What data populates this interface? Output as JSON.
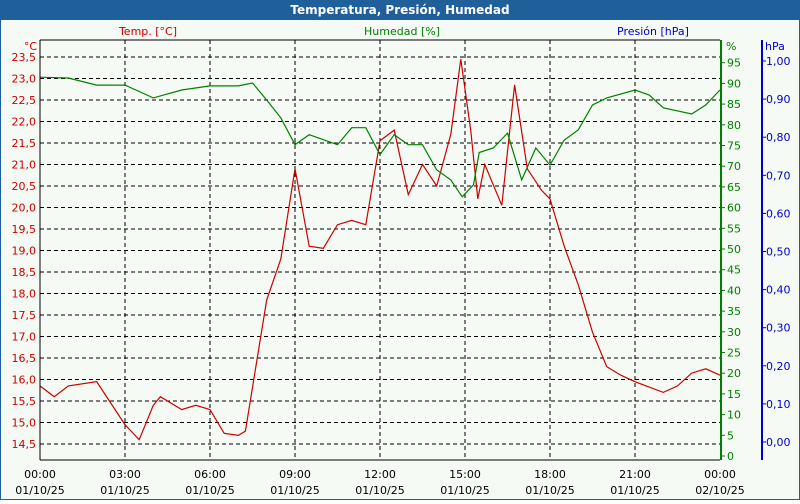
{
  "window": {
    "title": "Temperatura, Presión, Humedad",
    "titlebar_color": "#1f5f9a"
  },
  "chart_data": {
    "type": "line",
    "title": "Temperatura, Presión, Humedad",
    "grid": true,
    "x_ticks": [
      {
        "time": "00:00",
        "date": "01/10/25"
      },
      {
        "time": "03:00",
        "date": "01/10/25"
      },
      {
        "time": "06:00",
        "date": "01/10/25"
      },
      {
        "time": "09:00",
        "date": "01/10/25"
      },
      {
        "time": "12:00",
        "date": "01/10/25"
      },
      {
        "time": "15:00",
        "date": "01/10/25"
      },
      {
        "time": "18:00",
        "date": "01/10/25"
      },
      {
        "time": "21:00",
        "date": "01/10/25"
      },
      {
        "time": "00:00",
        "date": "02/10/25"
      }
    ],
    "axes": {
      "temp": {
        "label": "Temp. [°C]",
        "unit": "°C",
        "color": "#cc0000",
        "range": [
          14.5,
          23.5
        ],
        "ticks": [
          "23,5",
          "23,0",
          "22,5",
          "22,0",
          "21,5",
          "21,0",
          "20,5",
          "20,0",
          "19,5",
          "19,0",
          "18,5",
          "18,0",
          "17,5",
          "17,0",
          "16,5",
          "16,0",
          "15,5",
          "15,0",
          "14,5"
        ]
      },
      "humidity": {
        "label": "Humedad [%]",
        "unit": "%",
        "color": "#008000",
        "range": [
          0,
          95
        ],
        "ticks": [
          "95",
          "90",
          "85",
          "80",
          "75",
          "70",
          "65",
          "60",
          "55",
          "50",
          "45",
          "40",
          "35",
          "30",
          "25",
          "20",
          "15",
          "10",
          "5",
          "0"
        ]
      },
      "pressure": {
        "label": "Presión [hPa]",
        "unit": "hPa",
        "color": "#0000cc",
        "range": [
          0,
          1
        ],
        "ticks": [
          "1,00",
          "0,90",
          "0,80",
          "0,70",
          "0,60",
          "0,50",
          "0,40",
          "0,30",
          "0,20",
          "0,10",
          "0,00"
        ]
      }
    },
    "series": [
      {
        "name": "Temp. [°C]",
        "axis": "temp",
        "color": "#cc0000",
        "hours": [
          0,
          0.5,
          1,
          2,
          3,
          3.5,
          4,
          4.25,
          5,
          5.5,
          6,
          6.5,
          7,
          7.25,
          8,
          8.5,
          9,
          9.5,
          10,
          10.5,
          11,
          11.5,
          12,
          12.5,
          13,
          13.5,
          14,
          14.5,
          14.85,
          15.2,
          15.45,
          15.7,
          16.3,
          16.75,
          17.2,
          17.7,
          18,
          18.5,
          19,
          19.5,
          20,
          20.5,
          21,
          22,
          22.5,
          23,
          23.5,
          24
        ],
        "values": [
          15.85,
          15.6,
          15.85,
          15.95,
          14.95,
          14.6,
          15.4,
          15.6,
          15.3,
          15.4,
          15.3,
          14.75,
          14.7,
          14.8,
          17.85,
          18.8,
          20.9,
          19.1,
          19.05,
          19.6,
          19.7,
          19.6,
          21.55,
          21.8,
          20.3,
          21.0,
          20.5,
          21.7,
          23.45,
          21.8,
          20.2,
          21.0,
          20.05,
          22.85,
          20.9,
          20.4,
          20.2,
          19.1,
          18.2,
          17.1,
          16.3,
          16.1,
          15.95,
          15.7,
          15.85,
          16.15,
          16.25,
          16.1
        ]
      },
      {
        "name": "Humedad [%]",
        "axis": "humidity",
        "color": "#008000",
        "hours": [
          0,
          1,
          2,
          3,
          4,
          5,
          6,
          7,
          7.5,
          8,
          8.5,
          9,
          9.5,
          10,
          10.5,
          11,
          11.5,
          12,
          12.5,
          13,
          13.5,
          14,
          14.5,
          14.9,
          15.3,
          15.5,
          16,
          16.5,
          17,
          17.5,
          18,
          18.5,
          19,
          19.5,
          20,
          21,
          21.5,
          22,
          23,
          23.5,
          24
        ],
        "values": [
          91.5,
          91.3,
          89.6,
          89.6,
          86.5,
          88.4,
          89.4,
          89.4,
          90.1,
          86,
          81.7,
          75.2,
          77.6,
          76.4,
          75.2,
          79.3,
          79.3,
          72.8,
          77.6,
          75.2,
          75.2,
          69.1,
          66.7,
          62.6,
          65.5,
          73.3,
          74.4,
          78,
          66.7,
          74.4,
          70.3,
          76.3,
          78.8,
          84.8,
          86.5,
          88.4,
          87.2,
          84.1,
          82.6,
          84.8,
          88.4
        ]
      }
    ]
  }
}
